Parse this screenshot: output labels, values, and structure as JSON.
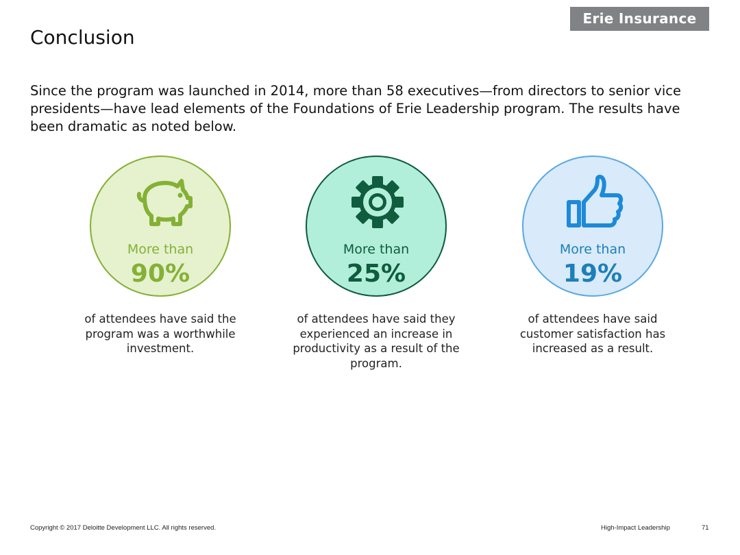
{
  "brand": {
    "name": "Erie Insurance"
  },
  "title": "Conclusion",
  "intro": "Since the program was launched in 2014, more than 58 executives—from directors to senior vice presidents—have lead elements of the Foundations of Erie Leadership program. The results have been dramatic as noted below.",
  "stats": [
    {
      "icon": "piggy-bank-icon",
      "prefix": "More than",
      "value": "90%",
      "description": "of attendees have said the program was a worthwhile investment.",
      "color": "#84b135"
    },
    {
      "icon": "gear-icon",
      "prefix": "More than",
      "value": "25%",
      "description": "of attendees have said they experienced an increase in productivity as a result of the program.",
      "color": "#0f5c3e"
    },
    {
      "icon": "thumbs-up-icon",
      "prefix": "More than",
      "value": "19%",
      "description": "of attendees have said customer satisfaction has increased as a result.",
      "color": "#1d7fb8"
    }
  ],
  "footer": {
    "copyright": "Copyright © 2017 Deloitte Development LLC. All rights reserved.",
    "deck_title": "High-Impact Leadership",
    "page_number": "71"
  }
}
